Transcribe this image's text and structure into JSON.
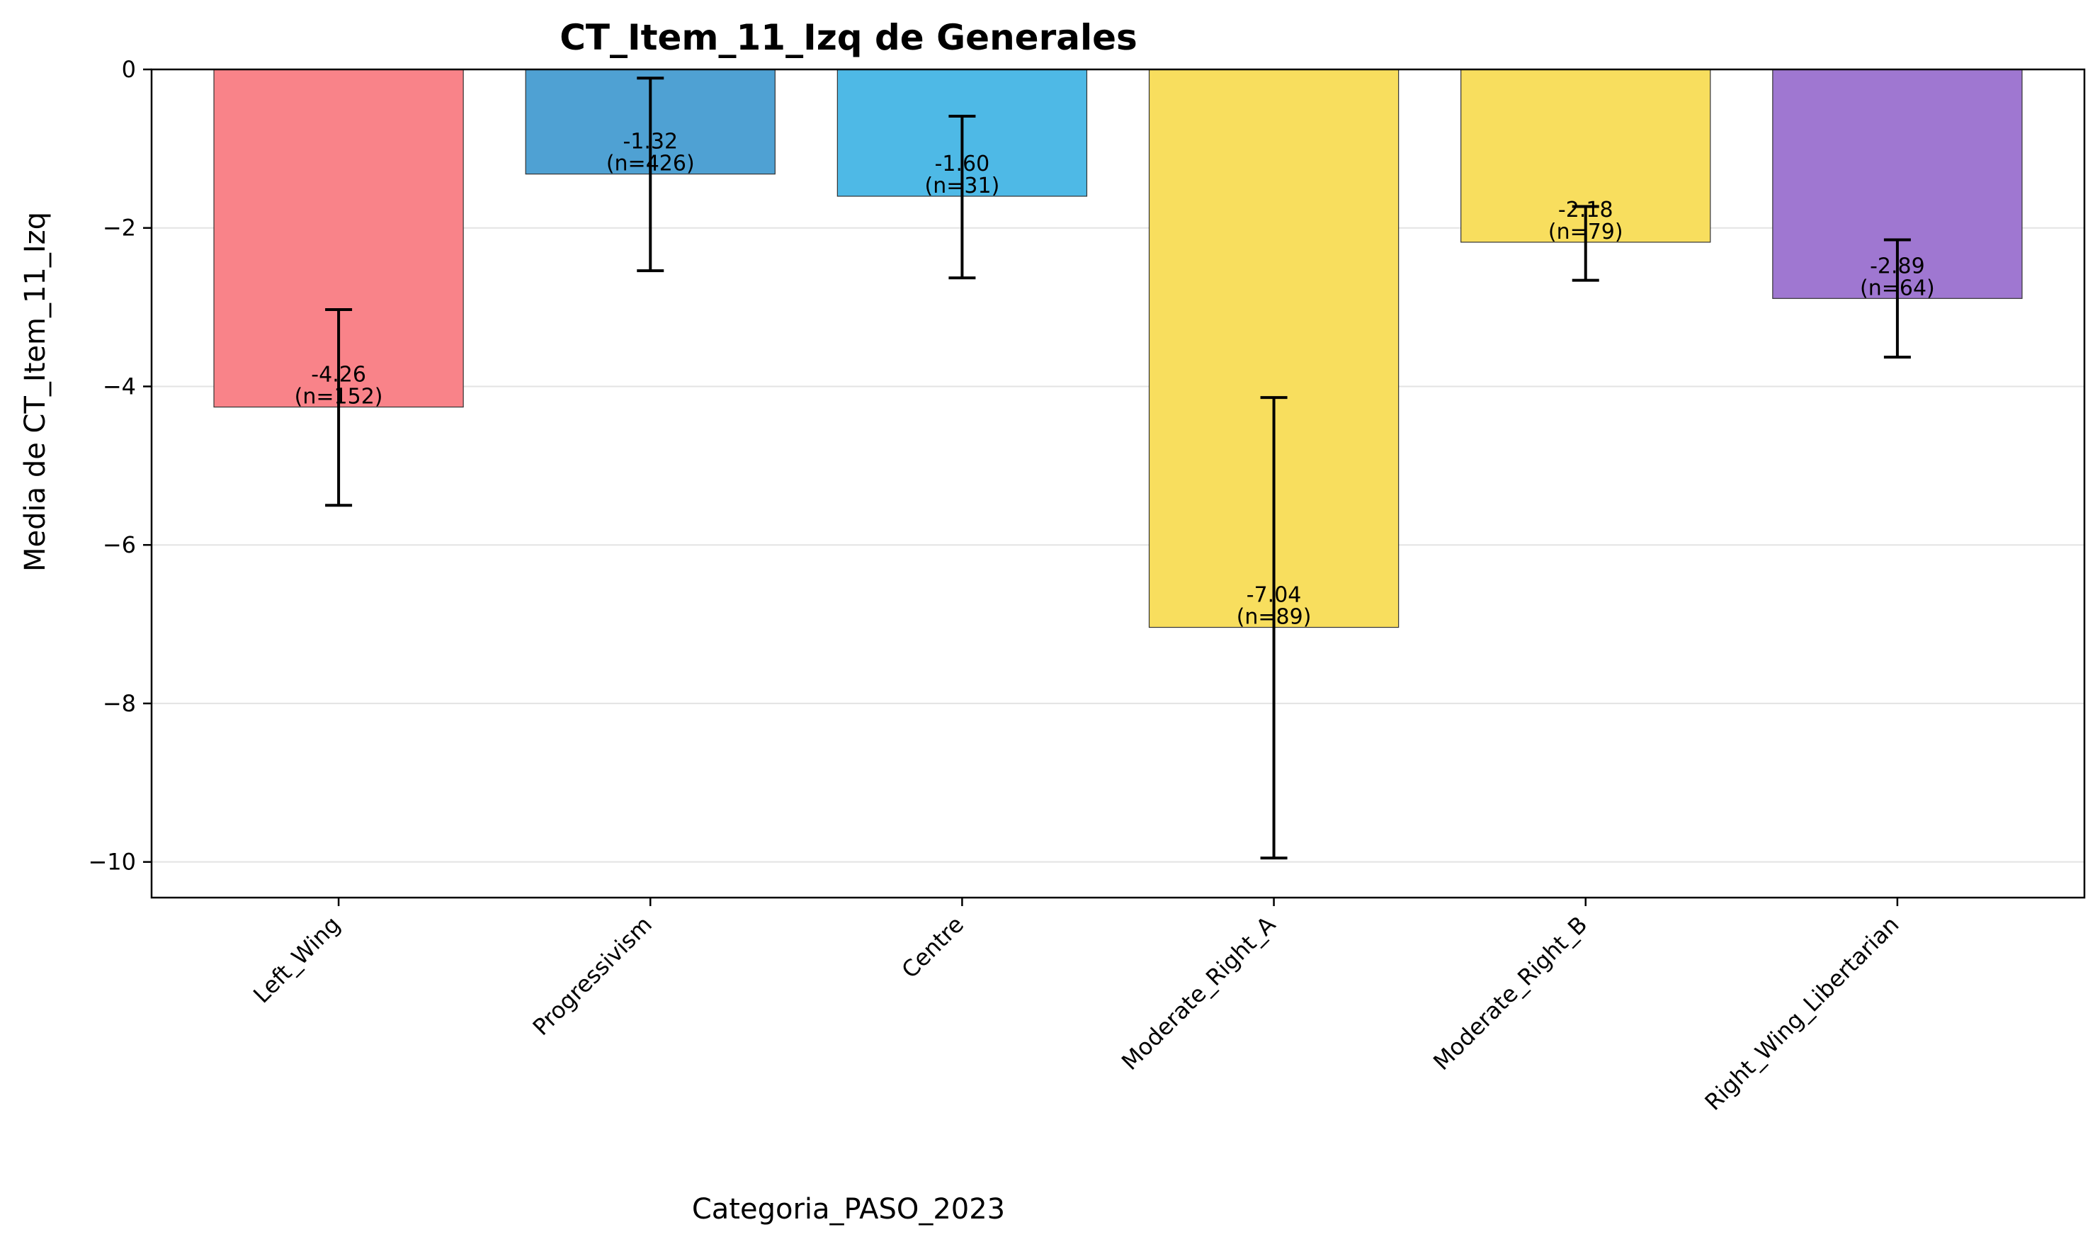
{
  "chart_data": {
    "type": "bar",
    "title": "CT_Item_11_Izq de Generales",
    "xlabel": "Categoria_PASO_2023",
    "ylabel": "Media de CT_Item_11_Izq",
    "categories": [
      "Left_Wing",
      "Progressivism",
      "Centre",
      "Moderate_Right_A",
      "Moderate_Right_B",
      "Right_Wing_Libertarian"
    ],
    "values": [
      -4.26,
      -1.32,
      -1.6,
      -7.04,
      -2.18,
      -2.89
    ],
    "n": [
      152,
      426,
      31,
      89,
      79,
      64
    ],
    "bar_labels": [
      [
        "-4.26",
        "(n=152)"
      ],
      [
        "-1.32",
        "(n=426)"
      ],
      [
        "-1.60",
        "(n=31)"
      ],
      [
        "-7.04",
        "(n=89)"
      ],
      [
        "-2.18",
        "(n=79)"
      ],
      [
        "-2.89",
        "(n=64)"
      ]
    ],
    "error_bars": [
      {
        "low": -5.5,
        "high": -3.03
      },
      {
        "low": -2.54,
        "high": -0.11
      },
      {
        "low": -2.63,
        "high": -0.59
      },
      {
        "low": -9.95,
        "high": -4.14
      },
      {
        "low": -2.66,
        "high": -1.73
      },
      {
        "low": -3.63,
        "high": -2.15
      }
    ],
    "colors": [
      "#f98389",
      "#4fa1d3",
      "#4eb9e6",
      "#f8de5e",
      "#f8de5e",
      "#9f77d1"
    ],
    "ylim": [
      -10.45,
      0
    ],
    "yticks": [
      0,
      -2,
      -4,
      -6,
      -8,
      -10
    ],
    "ytick_labels": [
      "0",
      "−2",
      "−4",
      "−6",
      "−8",
      "−10"
    ],
    "grid": "horizontal",
    "legend": "none"
  }
}
